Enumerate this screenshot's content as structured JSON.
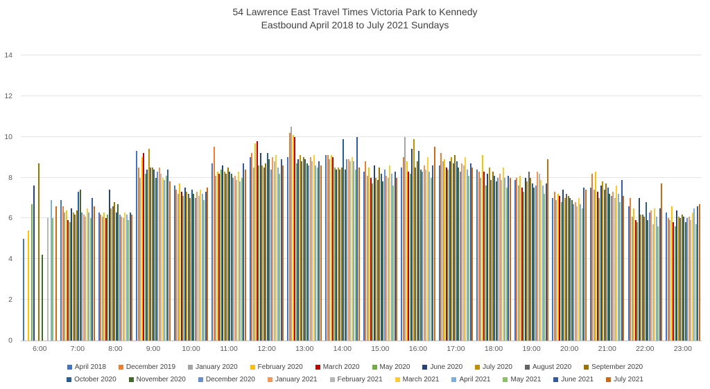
{
  "title_line1": "54 Lawrence East Travel Times Victoria Park to Kennedy",
  "title_line2": "Eastbound April 2018 to July 2021 Sundays",
  "chart_data": {
    "type": "bar",
    "title": "54 Lawrence East Travel Times Victoria Park to Kennedy Eastbound April 2018 to July 2021 Sundays",
    "xlabel": "",
    "ylabel": "",
    "ylim": [
      0,
      14
    ],
    "ytick_step": 2,
    "grid": true,
    "legend_position": "bottom",
    "categories": [
      "6:00",
      "7:00",
      "8:00",
      "9:00",
      "10:00",
      "11:00",
      "12:00",
      "13:00",
      "14:00",
      "15:00",
      "16:00",
      "17:00",
      "18:00",
      "19:00",
      "20:00",
      "21:00",
      "22:00",
      "23:00"
    ],
    "series": [
      {
        "name": "April 2018",
        "color": "#4472C4",
        "values": [
          5.0,
          6.9,
          6.3,
          9.3,
          7.6,
          8.7,
          9.0,
          9.0,
          9.1,
          8.3,
          8.5,
          8.6,
          8.4,
          7.9,
          7.0,
          7.5,
          6.6,
          6.3
        ]
      },
      {
        "name": "December 2019",
        "color": "#ED7D31",
        "values": [
          null,
          6.6,
          6.2,
          8.5,
          7.4,
          9.5,
          9.2,
          10.2,
          9.1,
          8.8,
          9.0,
          9.2,
          8.3,
          8.0,
          7.3,
          8.2,
          7.0,
          6.0
        ]
      },
      {
        "name": "January 2020",
        "color": "#A5A5A5",
        "values": [
          null,
          6.3,
          6.1,
          8.0,
          7.2,
          8.1,
          8.5,
          10.5,
          8.9,
          8.1,
          10.0,
          8.8,
          8.0,
          7.6,
          6.9,
          7.4,
          6.1,
          5.9
        ]
      },
      {
        "name": "February 2020",
        "color": "#FFC000",
        "values": [
          5.4,
          6.4,
          6.3,
          9.0,
          7.7,
          8.3,
          9.7,
          10.1,
          9.1,
          8.5,
          8.8,
          8.9,
          9.1,
          8.1,
          7.2,
          8.3,
          6.5,
          6.6
        ]
      },
      {
        "name": "March 2020",
        "color": "#C00000",
        "values": [
          null,
          5.9,
          6.0,
          9.2,
          7.3,
          8.2,
          9.8,
          10.0,
          9.0,
          8.0,
          8.3,
          8.5,
          8.3,
          7.5,
          7.1,
          7.3,
          5.9,
          5.8
        ]
      },
      {
        "name": "May 2020",
        "color": "#70AD47",
        "values": [
          6.7,
          5.8,
          6.2,
          8.2,
          7.1,
          8.4,
          8.6,
          8.7,
          8.5,
          7.7,
          8.2,
          8.4,
          7.6,
          7.3,
          6.8,
          7.0,
          5.8,
          5.6
        ]
      },
      {
        "name": "June 2020",
        "color": "#264478",
        "values": [
          7.6,
          6.5,
          7.4,
          8.4,
          7.5,
          8.6,
          9.2,
          8.9,
          8.4,
          8.6,
          9.4,
          8.8,
          8.2,
          8.0,
          7.4,
          7.6,
          7.0,
          6.4
        ]
      },
      {
        "name": "July 2020",
        "color": "#BF9000",
        "values": [
          null,
          6.3,
          6.5,
          9.4,
          7.3,
          8.3,
          8.6,
          9.1,
          8.5,
          8.0,
          9.9,
          9.0,
          8.5,
          7.8,
          7.0,
          7.8,
          6.2,
          6.1
        ]
      },
      {
        "name": "August 2020",
        "color": "#636363",
        "values": [
          null,
          6.2,
          6.6,
          8.5,
          7.2,
          8.2,
          8.5,
          8.8,
          8.4,
          7.9,
          8.5,
          8.7,
          7.9,
          8.3,
          7.2,
          7.4,
          6.2,
          6.0
        ]
      },
      {
        "name": "September 2020",
        "color": "#997300",
        "values": [
          8.7,
          6.4,
          6.8,
          8.5,
          7.0,
          8.5,
          8.7,
          9.0,
          8.5,
          8.5,
          8.8,
          9.1,
          8.3,
          8.0,
          7.1,
          7.7,
          6.1,
          6.2
        ]
      },
      {
        "name": "October 2020",
        "color": "#255E91",
        "values": [
          null,
          7.3,
          6.3,
          8.4,
          7.4,
          8.3,
          9.2,
          8.9,
          9.9,
          8.2,
          9.3,
          8.8,
          8.1,
          7.7,
          7.0,
          7.5,
          6.8,
          6.1
        ]
      },
      {
        "name": "November 2020",
        "color": "#43682B",
        "values": [
          4.2,
          7.4,
          6.7,
          8.0,
          7.2,
          8.2,
          8.9,
          8.7,
          8.4,
          7.8,
          8.4,
          8.5,
          7.8,
          7.5,
          6.9,
          7.2,
          5.9,
          5.8
        ]
      },
      {
        "name": "December 2020",
        "color": "#698ED0",
        "values": [
          null,
          6.3,
          6.2,
          8.3,
          7.0,
          8.0,
          8.4,
          8.6,
          8.9,
          8.4,
          8.3,
          8.3,
          8.0,
          7.6,
          6.7,
          7.1,
          6.3,
          6.0
        ]
      },
      {
        "name": "January 2021",
        "color": "#F1975A",
        "values": [
          null,
          6.2,
          6.1,
          8.5,
          7.3,
          8.1,
          9.0,
          9.0,
          8.9,
          8.1,
          8.6,
          8.7,
          8.2,
          8.3,
          6.8,
          7.3,
          6.4,
          6.1
        ]
      },
      {
        "name": "February 2021",
        "color": "#B7B7B7",
        "values": [
          6.0,
          6.1,
          6.0,
          8.2,
          7.1,
          7.9,
          8.8,
          8.8,
          8.8,
          8.0,
          8.4,
          8.6,
          7.9,
          8.2,
          6.6,
          7.0,
          5.7,
          5.9
        ]
      },
      {
        "name": "March 2021",
        "color": "#FFCD33",
        "values": [
          null,
          6.5,
          6.3,
          8.0,
          7.4,
          8.3,
          9.1,
          9.1,
          9.0,
          8.6,
          9.0,
          9.0,
          8.5,
          7.9,
          7.0,
          7.6,
          6.5,
          6.3
        ]
      },
      {
        "name": "April 2021",
        "color": "#7CAFDD",
        "values": [
          6.9,
          6.3,
          6.2,
          7.9,
          7.2,
          7.8,
          8.5,
          8.6,
          8.8,
          8.2,
          8.3,
          8.4,
          8.0,
          7.6,
          6.7,
          7.2,
          6.1,
          6.5
        ]
      },
      {
        "name": "May 2021",
        "color": "#8CC168",
        "values": [
          6.0,
          6.0,
          5.9,
          8.1,
          6.9,
          8.0,
          8.2,
          8.5,
          8.4,
          7.6,
          8.0,
          8.1,
          7.5,
          7.2,
          6.5,
          6.8,
          5.6,
          5.7
        ]
      },
      {
        "name": "June 2021",
        "color": "#335AA1",
        "values": [
          null,
          7.0,
          6.3,
          8.4,
          7.3,
          8.7,
          8.9,
          8.8,
          10.0,
          8.3,
          8.6,
          8.7,
          8.1,
          7.7,
          7.5,
          7.9,
          6.5,
          6.6
        ]
      },
      {
        "name": "July 2021",
        "color": "#CB6A15",
        "values": [
          6.6,
          6.6,
          6.2,
          7.8,
          7.5,
          8.4,
          8.6,
          8.6,
          8.5,
          8.0,
          9.5,
          8.5,
          8.0,
          8.9,
          7.4,
          7.1,
          7.7,
          6.7
        ]
      }
    ]
  }
}
